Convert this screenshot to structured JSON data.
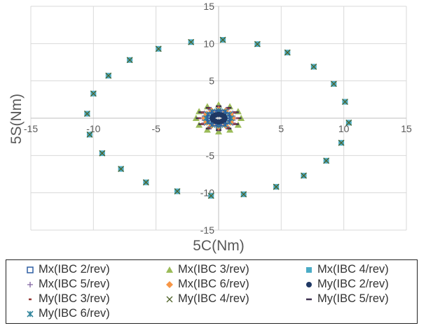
{
  "chart_data": {
    "type": "scatter",
    "xlabel": "5C(Nm)",
    "ylabel": "5S(Nm)",
    "xlim": [
      -15,
      15
    ],
    "ylim": [
      -15,
      15
    ],
    "xticks": [
      -15,
      -10,
      -5,
      0,
      5,
      10,
      15
    ],
    "yticks": [
      -15,
      -10,
      -5,
      0,
      5,
      10,
      15
    ],
    "grid": true,
    "legend_placement": "bottom",
    "series": [
      {
        "name": "Mx(IBC 2/rev)",
        "marker": "square-open",
        "color": "#2e5fa3",
        "x": [
          0.7,
          0.61,
          0.35,
          0,
          -0.35,
          -0.61,
          -0.7,
          -0.61,
          -0.35,
          0,
          0.35,
          0.61
        ],
        "y": [
          0,
          0.35,
          0.61,
          0.7,
          0.61,
          0.35,
          0,
          -0.35,
          -0.61,
          -0.7,
          -0.61,
          -0.35
        ]
      },
      {
        "name": "Mx(IBC 3/rev)",
        "marker": "triangle",
        "color": "#9bbb59",
        "x": [
          1.8,
          1.56,
          0.9,
          0,
          -0.9,
          -1.56,
          -1.8,
          -1.56,
          -0.9,
          0,
          0.9,
          1.56
        ],
        "y": [
          0,
          0.9,
          1.56,
          1.8,
          1.56,
          0.9,
          0,
          -0.9,
          -1.56,
          -1.8,
          -1.56,
          -0.9
        ]
      },
      {
        "name": "Mx(IBC 4/rev)",
        "marker": "square",
        "color": "#4bacc6",
        "x": [
          0.34,
          3.1,
          5.5,
          7.6,
          9.2,
          10.1,
          10.4,
          9.8,
          8.6,
          6.8,
          4.6,
          2.0,
          -0.6,
          -3.3,
          -5.8,
          -7.8,
          -9.3,
          -10.3,
          -10.5,
          -10.0,
          -8.8,
          -7.1,
          -4.8,
          -2.2
        ],
        "y": [
          10.5,
          9.93,
          8.8,
          6.9,
          4.6,
          2.2,
          -0.6,
          -3.3,
          -5.7,
          -7.7,
          -9.2,
          -10.2,
          -10.4,
          -9.8,
          -8.6,
          -6.8,
          -4.7,
          -2.2,
          0.6,
          3.3,
          5.7,
          7.8,
          9.3,
          10.2
        ]
      },
      {
        "name": "Mx(IBC 5/rev)",
        "marker": "plus",
        "color": "#8064a2",
        "x": [
          1.3,
          1.13,
          0.65,
          0,
          -0.65,
          -1.13,
          -1.3,
          -1.13,
          -0.65,
          0,
          0.65,
          1.13
        ],
        "y": [
          0,
          0.65,
          1.13,
          1.3,
          1.13,
          0.65,
          0,
          -0.65,
          -1.13,
          -1.3,
          -1.13,
          -0.65
        ]
      },
      {
        "name": "Mx(IBC 6/rev)",
        "marker": "diamond",
        "color": "#f79646",
        "x": [
          1.1,
          0.95,
          0.55,
          0,
          -0.55,
          -0.95,
          -1.1,
          -0.95,
          -0.55,
          0,
          0.55,
          0.95
        ],
        "y": [
          0,
          0.55,
          0.95,
          1.1,
          0.95,
          0.55,
          0,
          -0.55,
          -0.95,
          -1.1,
          -0.95,
          -0.55
        ]
      },
      {
        "name": "My(IBC 2/rev)",
        "marker": "circle",
        "color": "#1f3864",
        "x": [
          0.5,
          0.43,
          0.25,
          0,
          -0.25,
          -0.43,
          -0.5,
          -0.43,
          -0.25,
          0,
          0.25,
          0.43
        ],
        "y": [
          0,
          0.25,
          0.43,
          0.5,
          0.43,
          0.25,
          0,
          -0.25,
          -0.43,
          -0.5,
          -0.43,
          -0.25
        ]
      },
      {
        "name": "My(IBC 3/rev)",
        "marker": "dash",
        "color": "#943634",
        "x": [
          1.5,
          1.3,
          0.75,
          0,
          -0.75,
          -1.3,
          -1.5,
          -1.3,
          -0.75,
          0,
          0.75,
          1.3
        ],
        "y": [
          0,
          0.75,
          1.3,
          1.5,
          1.3,
          0.75,
          0,
          -0.75,
          -1.3,
          -1.5,
          -1.3,
          -0.75
        ]
      },
      {
        "name": "My(IBC 4/rev)",
        "marker": "x",
        "color": "#4f6228",
        "x": [
          0.34,
          3.1,
          5.5,
          7.6,
          9.2,
          10.1,
          10.4,
          9.8,
          8.6,
          6.8,
          4.6,
          2.0,
          -0.6,
          -3.3,
          -5.8,
          -7.8,
          -9.3,
          -10.3,
          -10.5,
          -10.0,
          -8.8,
          -7.1,
          -4.8,
          -2.2
        ],
        "y": [
          10.5,
          9.93,
          8.8,
          6.9,
          4.6,
          2.2,
          -0.6,
          -3.3,
          -5.7,
          -7.7,
          -9.2,
          -10.2,
          -10.4,
          -9.8,
          -8.6,
          -6.8,
          -4.7,
          -2.2,
          0.6,
          3.3,
          5.7,
          7.8,
          9.3,
          10.2
        ]
      },
      {
        "name": "My(IBC 5/rev)",
        "marker": "longdash",
        "color": "#3f3151",
        "x": [
          1.6,
          1.39,
          0.8,
          0,
          -0.8,
          -1.39,
          -1.6,
          -1.39,
          -0.8,
          0,
          0.8,
          1.39
        ],
        "y": [
          0,
          0.8,
          1.39,
          1.6,
          1.39,
          0.8,
          0,
          -0.8,
          -1.39,
          -1.6,
          -1.39,
          -0.8
        ]
      },
      {
        "name": "My(IBC 6/rev)",
        "marker": "star",
        "color": "#31859c",
        "x": [
          1.0,
          0.87,
          0.5,
          0,
          -0.5,
          -0.87,
          -1.0,
          -0.87,
          -0.5,
          0,
          0.5,
          0.87
        ],
        "y": [
          0,
          0.5,
          0.87,
          1.0,
          0.87,
          0.5,
          0,
          -0.5,
          -0.87,
          -1.0,
          -0.87,
          -0.5
        ]
      }
    ]
  }
}
